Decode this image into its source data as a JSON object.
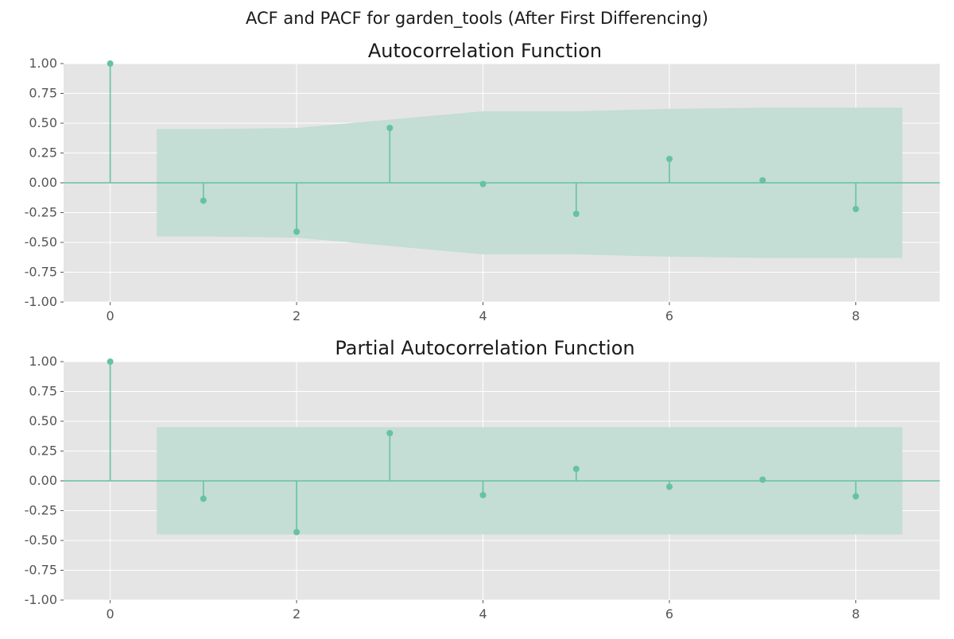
{
  "figure": {
    "suptitle": "ACF and PACF for garden_tools (After First Differencing)"
  },
  "style": {
    "plot_bg": "#e5e5e5",
    "grid": "#ffffff",
    "marker": "#66c2a5",
    "band": "#c4ddd5",
    "tick_text": "#555555"
  },
  "chart_data": [
    {
      "type": "stem",
      "title": "Autocorrelation Function",
      "xlabel": "",
      "ylabel": "",
      "xlim": [
        -0.5,
        8.9
      ],
      "ylim": [
        -1.0,
        1.0
      ],
      "xticks": [
        0,
        2,
        4,
        6,
        8
      ],
      "yticks": [
        -1.0,
        -0.75,
        -0.5,
        -0.25,
        0.0,
        0.25,
        0.5,
        0.75,
        1.0
      ],
      "grid": true,
      "lags": [
        0,
        1,
        2,
        3,
        4,
        5,
        6,
        7,
        8
      ],
      "values": [
        1.0,
        -0.15,
        -0.41,
        0.46,
        -0.01,
        -0.26,
        0.2,
        0.02,
        -0.22
      ],
      "confidence_band": {
        "x": [
          0.5,
          1,
          2,
          3,
          4,
          5,
          6,
          7,
          8,
          8.5
        ],
        "upper": [
          0.45,
          0.45,
          0.46,
          0.53,
          0.6,
          0.6,
          0.62,
          0.63,
          0.63,
          0.63
        ],
        "lower": [
          -0.45,
          -0.45,
          -0.46,
          -0.53,
          -0.6,
          -0.6,
          -0.62,
          -0.63,
          -0.63,
          -0.63
        ]
      }
    },
    {
      "type": "stem",
      "title": "Partial Autocorrelation Function",
      "xlabel": "",
      "ylabel": "",
      "xlim": [
        -0.5,
        8.9
      ],
      "ylim": [
        -1.0,
        1.0
      ],
      "xticks": [
        0,
        2,
        4,
        6,
        8
      ],
      "yticks": [
        -1.0,
        -0.75,
        -0.5,
        -0.25,
        0.0,
        0.25,
        0.5,
        0.75,
        1.0
      ],
      "grid": true,
      "lags": [
        0,
        1,
        2,
        3,
        4,
        5,
        6,
        7,
        8
      ],
      "values": [
        1.0,
        -0.15,
        -0.43,
        0.4,
        -0.12,
        0.1,
        -0.05,
        0.01,
        -0.13
      ],
      "confidence_band": {
        "x": [
          0.5,
          8.5
        ],
        "upper": [
          0.45,
          0.45
        ],
        "lower": [
          -0.45,
          -0.45
        ]
      }
    }
  ]
}
